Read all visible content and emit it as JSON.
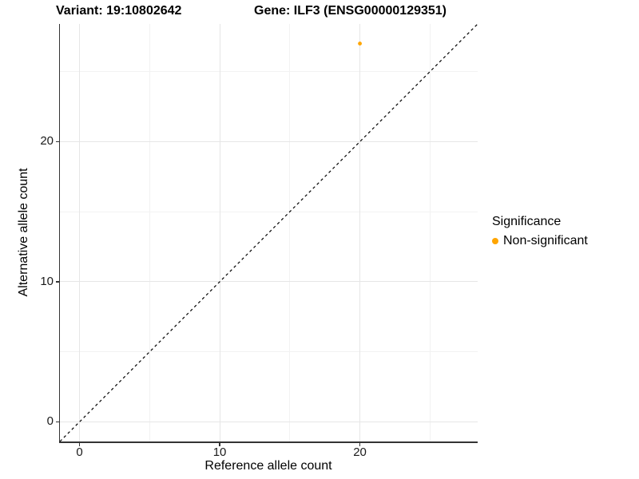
{
  "chart_data": {
    "type": "scatter",
    "title_variant": "Variant: 19:10802642",
    "title_gene": "Gene: ILF3 (ENSG00000129351)",
    "xlabel": "Reference allele count",
    "ylabel": "Alternative allele count",
    "xlim": [
      -1.4,
      28.4
    ],
    "ylim": [
      -1.4,
      28.4
    ],
    "x_major_ticks": [
      0,
      10,
      20
    ],
    "x_minor_ticks": [
      5,
      15,
      25
    ],
    "y_major_ticks": [
      0,
      10,
      20
    ],
    "y_minor_ticks": [
      5,
      15,
      25
    ],
    "grid": true,
    "points": [
      {
        "x": 20,
        "y": 27,
        "series": "Non-significant"
      }
    ],
    "reference_line": {
      "kind": "identity",
      "style": "dashed",
      "color": "#000000"
    },
    "legend": {
      "position": "right",
      "title": "Significance",
      "items": [
        {
          "label": "Non-significant",
          "color": "#FFA500"
        }
      ]
    },
    "colors": {
      "point": "#FFA500",
      "axis_line": "#333333",
      "grid_major": "#E6E6E6",
      "grid_minor": "#F2F2F2",
      "background": "#FFFFFF"
    }
  }
}
